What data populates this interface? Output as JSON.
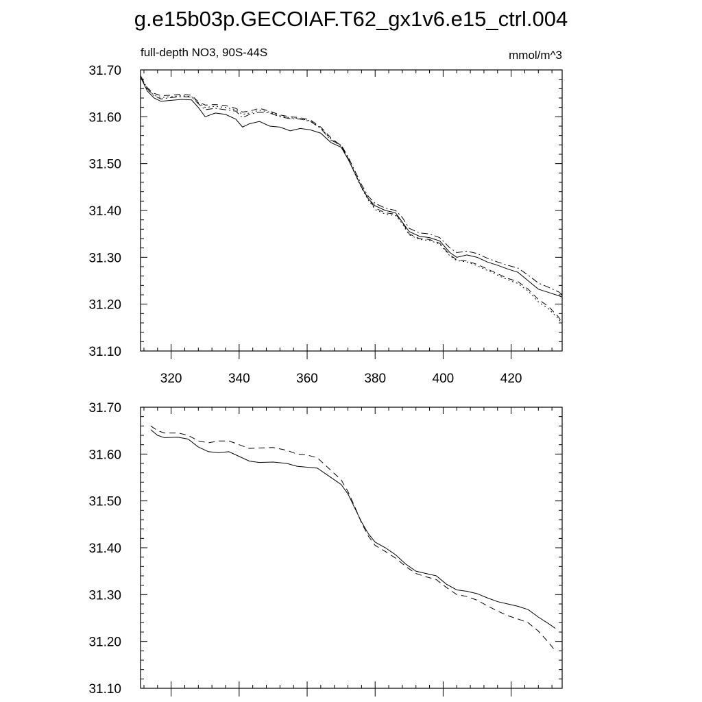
{
  "title": "g.e15b03p.GECOIAF.T62_gx1v6.e15_ctrl.004",
  "chart_data": [
    {
      "type": "line",
      "panel": "top",
      "left_label": "full-depth NO3, 90S-44S",
      "right_label": "mmol/m^3",
      "xlim": [
        311,
        435
      ],
      "ylim": [
        31.1,
        31.7
      ],
      "x_ticks": [
        320,
        340,
        360,
        380,
        400,
        420
      ],
      "x_tick_labels": [
        "320",
        "340",
        "360",
        "380",
        "400",
        "420"
      ],
      "y_ticks": [
        31.1,
        31.2,
        31.3,
        31.4,
        31.5,
        31.6,
        31.7
      ],
      "y_tick_labels": [
        "31.10",
        "31.20",
        "31.30",
        "31.40",
        "31.50",
        "31.60",
        "31.70"
      ],
      "series": [
        {
          "name": "solid",
          "style": "solid",
          "x": [
            311,
            313,
            315,
            317,
            320,
            323,
            326,
            328,
            330,
            333,
            336,
            339,
            341,
            343,
            346,
            349,
            352,
            355,
            358,
            361,
            364,
            367,
            370,
            372,
            374,
            376,
            378,
            380,
            383,
            386,
            388,
            390,
            393,
            396,
            399,
            402,
            404,
            407,
            410,
            413,
            416,
            419,
            422,
            425,
            428,
            431,
            434,
            435
          ],
          "y": [
            31.685,
            31.655,
            31.64,
            31.633,
            31.635,
            31.637,
            31.636,
            31.62,
            31.6,
            31.608,
            31.605,
            31.595,
            31.578,
            31.585,
            31.59,
            31.58,
            31.578,
            31.57,
            31.575,
            31.572,
            31.565,
            31.545,
            31.535,
            31.51,
            31.48,
            31.45,
            31.425,
            31.41,
            31.4,
            31.395,
            31.375,
            31.355,
            31.345,
            31.342,
            31.335,
            31.31,
            31.3,
            31.305,
            31.3,
            31.29,
            31.283,
            31.275,
            31.268,
            31.25,
            31.232,
            31.225,
            31.218,
            31.215
          ]
        },
        {
          "name": "dash-dot",
          "style": "dashdot",
          "x": [
            311,
            313,
            315,
            317,
            320,
            323,
            326,
            328,
            330,
            333,
            336,
            339,
            341,
            343,
            346,
            349,
            352,
            355,
            358,
            361,
            364,
            367,
            370,
            372,
            374,
            376,
            378,
            380,
            383,
            386,
            388,
            390,
            393,
            396,
            399,
            402,
            404,
            407,
            410,
            413,
            416,
            419,
            422,
            425,
            428,
            431,
            434,
            435
          ],
          "y": [
            31.688,
            31.66,
            31.645,
            31.638,
            31.641,
            31.643,
            31.642,
            31.628,
            31.615,
            31.618,
            31.615,
            31.612,
            31.598,
            31.605,
            31.61,
            31.608,
            31.6,
            31.596,
            31.595,
            31.59,
            31.575,
            31.55,
            31.54,
            31.515,
            31.485,
            31.455,
            31.43,
            31.415,
            31.405,
            31.4,
            31.385,
            31.362,
            31.352,
            31.35,
            31.342,
            31.32,
            31.31,
            31.313,
            31.308,
            31.298,
            31.29,
            31.283,
            31.277,
            31.262,
            31.245,
            31.236,
            31.226,
            31.22
          ]
        },
        {
          "name": "dashed",
          "style": "dashed",
          "x": [
            311,
            313,
            315,
            317,
            320,
            323,
            326,
            328,
            330,
            333,
            336,
            339,
            341,
            343,
            346,
            349,
            352,
            355,
            358,
            361,
            364,
            367,
            370,
            372,
            374,
            376,
            378,
            380,
            383,
            386,
            388,
            390,
            393,
            396,
            399,
            402,
            404,
            407,
            410,
            413,
            416,
            419,
            422,
            425,
            428,
            431,
            434,
            435
          ],
          "y": [
            31.683,
            31.662,
            31.65,
            31.645,
            31.646,
            31.648,
            31.646,
            31.632,
            31.625,
            31.626,
            31.624,
            31.618,
            31.61,
            31.612,
            31.618,
            31.612,
            31.604,
            31.6,
            31.598,
            31.593,
            31.578,
            31.555,
            31.538,
            31.512,
            31.48,
            31.45,
            31.425,
            31.405,
            31.395,
            31.392,
            31.375,
            31.35,
            31.34,
            31.338,
            31.33,
            31.305,
            31.295,
            31.292,
            31.285,
            31.275,
            31.265,
            31.255,
            31.248,
            31.232,
            31.21,
            31.195,
            31.172,
            31.16
          ]
        },
        {
          "name": "dotted",
          "style": "dotted",
          "x": [
            311,
            313,
            315,
            317,
            320,
            323,
            326,
            328,
            330,
            333,
            336,
            339,
            341,
            343,
            346,
            349,
            352,
            355,
            358,
            361,
            364,
            367,
            370,
            372,
            374,
            376,
            378,
            380,
            383,
            386,
            388,
            390,
            393,
            396,
            399,
            402,
            404,
            407,
            410,
            413,
            416,
            419,
            422,
            425,
            428,
            431,
            434,
            435
          ],
          "y": [
            31.686,
            31.658,
            31.646,
            31.641,
            31.643,
            31.645,
            31.643,
            31.63,
            31.62,
            31.622,
            31.62,
            31.615,
            31.605,
            31.608,
            31.614,
            31.61,
            31.602,
            31.598,
            31.596,
            31.591,
            31.576,
            31.552,
            31.537,
            31.511,
            31.479,
            31.448,
            31.422,
            31.402,
            31.392,
            31.389,
            31.372,
            31.348,
            31.338,
            31.336,
            31.328,
            31.303,
            31.293,
            31.29,
            31.282,
            31.272,
            31.262,
            31.252,
            31.244,
            31.228,
            31.205,
            31.19,
            31.168,
            31.158
          ]
        }
      ]
    },
    {
      "type": "line",
      "panel": "bottom",
      "xlim": [
        311,
        435
      ],
      "ylim": [
        31.1,
        31.7
      ],
      "x_ticks": [
        320,
        340,
        360,
        380,
        400,
        420
      ],
      "y_ticks": [
        31.1,
        31.2,
        31.3,
        31.4,
        31.5,
        31.6,
        31.7
      ],
      "y_tick_labels": [
        "31.10",
        "31.20",
        "31.30",
        "31.40",
        "31.50",
        "31.60",
        "31.70"
      ],
      "series": [
        {
          "name": "solid",
          "style": "solid",
          "x": [
            314,
            316,
            318,
            322,
            325,
            328,
            331,
            334,
            337,
            340,
            343,
            346,
            350,
            354,
            357,
            360,
            363,
            366,
            370,
            372,
            374,
            376,
            378,
            380,
            383,
            386,
            389,
            392,
            395,
            398,
            401,
            404,
            407,
            410,
            413,
            416,
            419,
            422,
            425,
            428,
            431,
            433
          ],
          "y": [
            31.652,
            31.64,
            31.635,
            31.636,
            31.632,
            31.615,
            31.605,
            31.603,
            31.605,
            31.595,
            31.585,
            31.582,
            31.583,
            31.58,
            31.574,
            31.572,
            31.57,
            31.555,
            31.535,
            31.515,
            31.485,
            31.455,
            31.43,
            31.412,
            31.4,
            31.385,
            31.365,
            31.35,
            31.345,
            31.34,
            31.322,
            31.31,
            31.307,
            31.302,
            31.293,
            31.285,
            31.28,
            31.275,
            31.268,
            31.252,
            31.238,
            31.228
          ]
        },
        {
          "name": "dashed",
          "style": "dashed",
          "x": [
            314,
            316,
            318,
            322,
            325,
            328,
            331,
            334,
            337,
            340,
            343,
            346,
            350,
            354,
            357,
            360,
            363,
            366,
            370,
            372,
            374,
            376,
            378,
            380,
            383,
            386,
            389,
            392,
            395,
            398,
            401,
            404,
            407,
            410,
            413,
            416,
            419,
            422,
            425,
            428,
            431,
            433
          ],
          "y": [
            31.66,
            31.65,
            31.645,
            31.645,
            31.64,
            31.628,
            31.624,
            31.628,
            31.628,
            31.62,
            31.612,
            31.613,
            31.614,
            31.608,
            31.6,
            31.598,
            31.592,
            31.572,
            31.545,
            31.52,
            31.488,
            31.453,
            31.425,
            31.405,
            31.392,
            31.378,
            31.36,
            31.345,
            31.338,
            31.332,
            31.315,
            31.3,
            31.296,
            31.288,
            31.276,
            31.265,
            31.255,
            31.248,
            31.24,
            31.222,
            31.198,
            31.18
          ]
        }
      ]
    }
  ]
}
